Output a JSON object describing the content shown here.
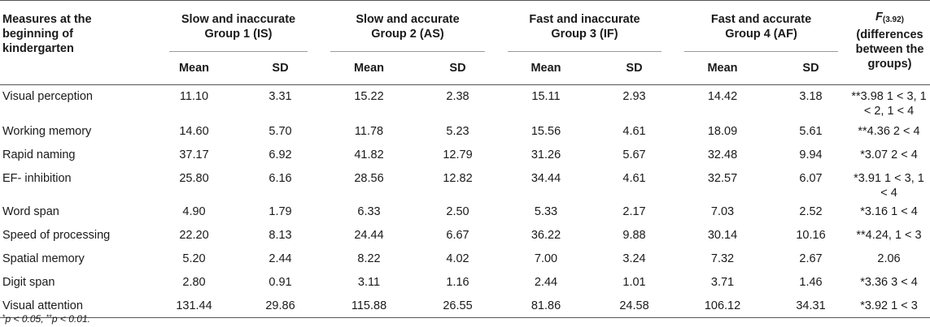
{
  "header": {
    "first_col": "Measures at the beginning of kindergarten",
    "groups": [
      {
        "line1": "Slow and inaccurate",
        "line2": "Group 1 (IS)"
      },
      {
        "line1": "Slow and accurate",
        "line2": "Group 2 (AS)"
      },
      {
        "line1": "Fast and inaccurate",
        "line2": "Group 3 (IF)"
      },
      {
        "line1": "Fast and accurate",
        "line2": "Group 4 (AF)"
      }
    ],
    "mean_label": "Mean",
    "sd_label": "SD",
    "f_symbol": "F",
    "f_df": "(3.92)",
    "f_desc": "(differences between the groups)"
  },
  "rows": [
    {
      "label": "Visual perception",
      "values": [
        "11.10",
        "3.31",
        "15.22",
        "2.38",
        "15.11",
        "2.93",
        "14.42",
        "3.18"
      ],
      "f": "**3.98 1 < 3, 1 < 2, 1 < 4"
    },
    {
      "label": "Working memory",
      "values": [
        "14.60",
        "5.70",
        "11.78",
        "5.23",
        "15.56",
        "4.61",
        "18.09",
        "5.61"
      ],
      "f": "**4.36 2 < 4"
    },
    {
      "label": "Rapid naming",
      "values": [
        "37.17",
        "6.92",
        "41.82",
        "12.79",
        "31.26",
        "5.67",
        "32.48",
        "9.94"
      ],
      "f": "*3.07 2 < 4"
    },
    {
      "label": "EF- inhibition",
      "values": [
        "25.80",
        "6.16",
        "28.56",
        "12.82",
        "34.44",
        "4.61",
        "32.57",
        "6.07"
      ],
      "f": "*3.91 1 < 3, 1 < 4"
    },
    {
      "label": "Word span",
      "values": [
        "4.90",
        "1.79",
        "6.33",
        "2.50",
        "5.33",
        "2.17",
        "7.03",
        "2.52"
      ],
      "f": "*3.16 1 < 4"
    },
    {
      "label": "Speed of processing",
      "values": [
        "22.20",
        "8.13",
        "24.44",
        "6.67",
        "36.22",
        "9.88",
        "30.14",
        "10.16"
      ],
      "f": "**4.24, 1 < 3"
    },
    {
      "label": "Spatial memory",
      "values": [
        "5.20",
        "2.44",
        "8.22",
        "4.02",
        "7.00",
        "3.24",
        "7.32",
        "2.67"
      ],
      "f": "2.06"
    },
    {
      "label": "Digit span",
      "values": [
        "2.80",
        "0.91",
        "3.11",
        "1.16",
        "2.44",
        "1.01",
        "3.71",
        "1.46"
      ],
      "f": "*3.36 3 < 4"
    },
    {
      "label": "Visual attention",
      "values": [
        "131.44",
        "29.86",
        "115.88",
        "26.55",
        "81.86",
        "24.58",
        "106.12",
        "34.31"
      ],
      "f": "*3.92 1 < 3"
    }
  ],
  "footnote": {
    "star1": "*",
    "p1": "p < 0.05, ",
    "star2": "**",
    "p2": "p < 0.01."
  }
}
